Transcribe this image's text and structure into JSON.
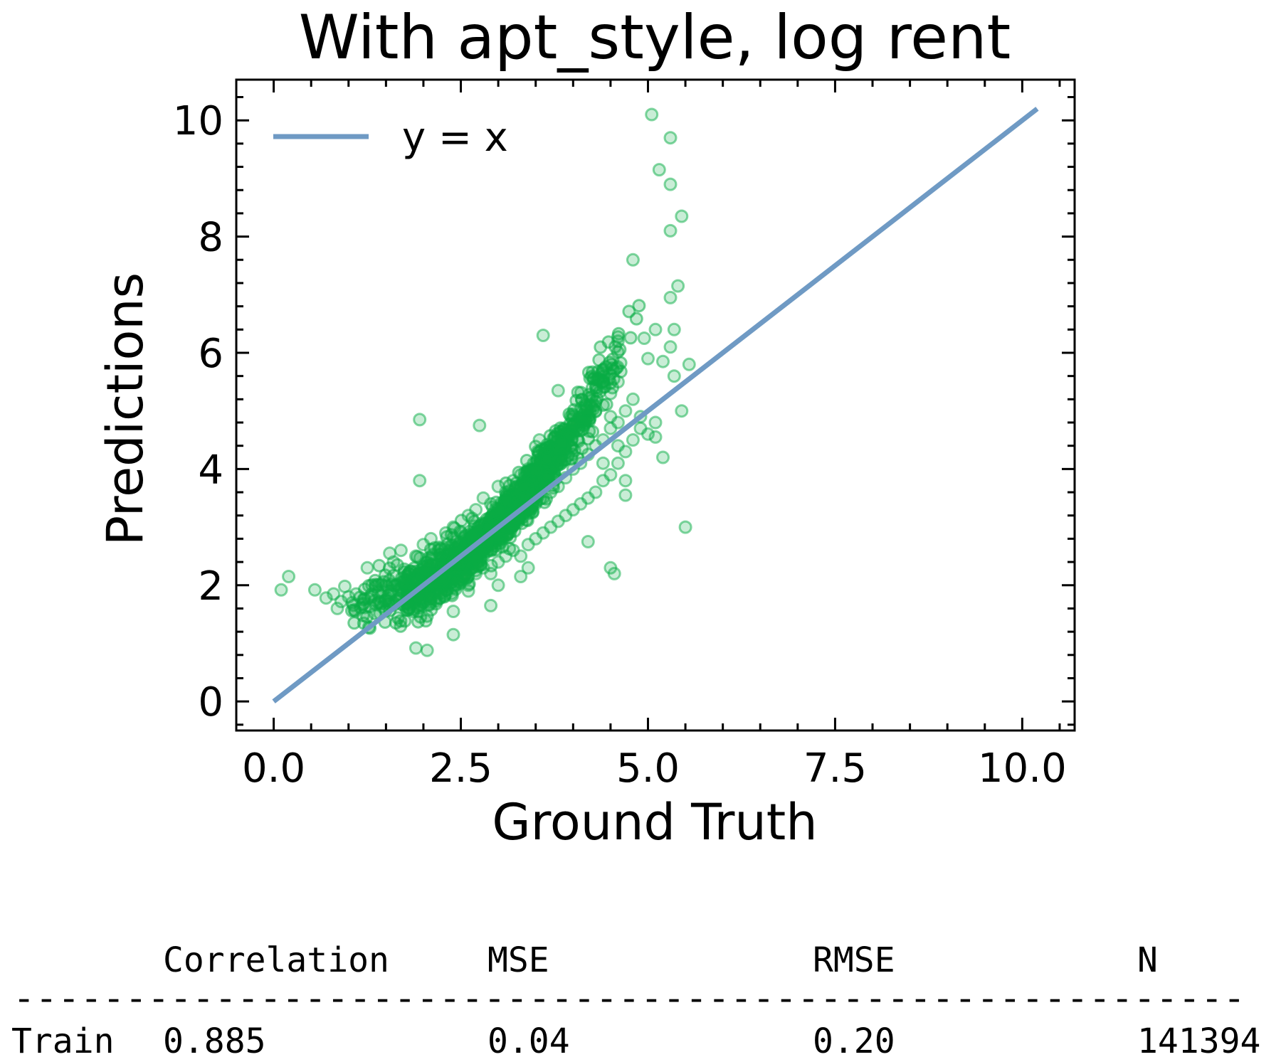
{
  "chart_data": {
    "type": "scatter",
    "title": "With apt_style, log rent",
    "xlabel": "Ground Truth",
    "ylabel": "Predictions",
    "xlim": [
      -0.5,
      10.7
    ],
    "ylim": [
      -0.5,
      10.7
    ],
    "x_ticks": [
      0.0,
      2.5,
      5.0,
      7.5,
      10.0
    ],
    "x_tick_labels": [
      "0.0",
      "2.5",
      "5.0",
      "7.5",
      "10.0"
    ],
    "y_ticks": [
      0,
      2,
      4,
      6,
      8,
      10
    ],
    "y_tick_labels": [
      "0",
      "2",
      "4",
      "6",
      "8",
      "10"
    ],
    "grid": false,
    "legend": {
      "position": "top-left",
      "entries": [
        "y = x"
      ]
    },
    "reference_line": {
      "name": "y = x",
      "x": [
        0,
        10.2
      ],
      "y": [
        0,
        10.2
      ],
      "color": "#6f9ac4"
    },
    "scatter_color": "#0aad45",
    "series": [
      {
        "points": [
          [
            0.1,
            1.92
          ],
          [
            0.2,
            2.15
          ],
          [
            0.55,
            1.92
          ],
          [
            0.7,
            1.78
          ],
          [
            0.8,
            1.85
          ],
          [
            0.85,
            1.6
          ],
          [
            0.9,
            1.72
          ],
          [
            0.95,
            1.98
          ],
          [
            1.0,
            1.8
          ],
          [
            1.05,
            1.7
          ],
          [
            1.1,
            1.85
          ],
          [
            1.2,
            1.75
          ],
          [
            1.3,
            1.8
          ],
          [
            1.4,
            1.7
          ],
          [
            1.5,
            1.75
          ],
          [
            1.6,
            1.7
          ],
          [
            1.7,
            1.75
          ],
          [
            1.8,
            1.85
          ],
          [
            1.9,
            1.9
          ],
          [
            2.0,
            2.0
          ],
          [
            2.1,
            2.05
          ],
          [
            2.2,
            2.15
          ],
          [
            2.3,
            2.2
          ],
          [
            2.4,
            2.3
          ],
          [
            2.5,
            2.4
          ],
          [
            2.6,
            2.5
          ],
          [
            2.7,
            2.6
          ],
          [
            2.8,
            2.7
          ],
          [
            2.9,
            2.8
          ],
          [
            3.0,
            2.9
          ],
          [
            3.1,
            3.0
          ],
          [
            3.2,
            3.1
          ],
          [
            3.3,
            3.2
          ],
          [
            3.4,
            3.3
          ],
          [
            3.5,
            3.4
          ],
          [
            3.6,
            3.5
          ],
          [
            3.7,
            3.6
          ],
          [
            3.8,
            3.7
          ],
          [
            3.9,
            3.85
          ],
          [
            4.0,
            4.0
          ],
          [
            4.1,
            4.1
          ],
          [
            4.2,
            4.25
          ],
          [
            4.3,
            4.4
          ],
          [
            4.4,
            4.5
          ],
          [
            4.5,
            4.7
          ],
          [
            4.6,
            4.8
          ],
          [
            4.7,
            5.0
          ],
          [
            4.8,
            5.2
          ],
          [
            1.5,
            2.0
          ],
          [
            1.6,
            2.4
          ],
          [
            1.7,
            2.6
          ],
          [
            1.8,
            2.2
          ],
          [
            1.9,
            2.5
          ],
          [
            2.0,
            2.7
          ],
          [
            2.1,
            2.8
          ],
          [
            2.2,
            2.6
          ],
          [
            2.3,
            2.9
          ],
          [
            2.4,
            3.0
          ],
          [
            2.5,
            2.9
          ],
          [
            2.6,
            3.2
          ],
          [
            2.7,
            3.3
          ],
          [
            2.8,
            3.5
          ],
          [
            2.9,
            3.4
          ],
          [
            3.0,
            3.7
          ],
          [
            3.1,
            3.6
          ],
          [
            3.2,
            3.8
          ],
          [
            3.3,
            3.9
          ],
          [
            3.4,
            4.0
          ],
          [
            3.5,
            4.1
          ],
          [
            3.6,
            4.2
          ],
          [
            3.7,
            4.0
          ],
          [
            3.8,
            4.3
          ],
          [
            3.9,
            4.5
          ],
          [
            4.0,
            4.6
          ],
          [
            4.1,
            4.8
          ],
          [
            4.2,
            4.9
          ],
          [
            4.3,
            5.0
          ],
          [
            4.4,
            5.1
          ],
          [
            4.5,
            5.3
          ],
          [
            4.6,
            5.5
          ],
          [
            2.0,
            1.7
          ],
          [
            2.1,
            1.8
          ],
          [
            2.2,
            1.9
          ],
          [
            2.3,
            1.85
          ],
          [
            2.4,
            2.0
          ],
          [
            2.5,
            2.1
          ],
          [
            2.6,
            2.0
          ],
          [
            2.7,
            2.2
          ],
          [
            2.8,
            2.3
          ],
          [
            2.9,
            2.2
          ],
          [
            3.0,
            2.4
          ],
          [
            3.1,
            2.5
          ],
          [
            3.2,
            2.6
          ],
          [
            3.3,
            2.5
          ],
          [
            3.4,
            2.7
          ],
          [
            3.5,
            2.8
          ],
          [
            3.6,
            2.9
          ],
          [
            3.7,
            3.0
          ],
          [
            3.8,
            3.1
          ],
          [
            3.9,
            3.2
          ],
          [
            4.0,
            3.3
          ],
          [
            4.1,
            3.4
          ],
          [
            4.2,
            3.5
          ],
          [
            4.3,
            3.6
          ],
          [
            4.4,
            3.8
          ],
          [
            4.5,
            3.9
          ],
          [
            4.6,
            4.1
          ],
          [
            4.7,
            4.3
          ],
          [
            4.8,
            4.5
          ],
          [
            4.9,
            4.7
          ],
          [
            5.0,
            4.6
          ],
          [
            5.1,
            4.8
          ],
          [
            1.95,
            4.85
          ],
          [
            1.95,
            3.8
          ],
          [
            1.9,
            0.92
          ],
          [
            2.05,
            0.88
          ],
          [
            2.4,
            1.55
          ],
          [
            2.4,
            1.15
          ],
          [
            2.6,
            1.9
          ],
          [
            2.9,
            1.65
          ],
          [
            3.0,
            2.0
          ],
          [
            3.3,
            2.15
          ],
          [
            3.4,
            2.3
          ],
          [
            3.6,
            6.3
          ],
          [
            3.8,
            5.35
          ],
          [
            4.2,
            2.75
          ],
          [
            4.5,
            2.3
          ],
          [
            4.55,
            2.2
          ],
          [
            4.6,
            6.2
          ],
          [
            4.7,
            3.55
          ],
          [
            4.8,
            7.6
          ],
          [
            4.95,
            6.25
          ],
          [
            5.0,
            5.9
          ],
          [
            5.1,
            6.4
          ],
          [
            5.05,
            10.1
          ],
          [
            5.3,
            9.7
          ],
          [
            5.15,
            9.15
          ],
          [
            5.3,
            8.9
          ],
          [
            5.45,
            8.35
          ],
          [
            5.3,
            8.1
          ],
          [
            5.4,
            7.15
          ],
          [
            5.3,
            6.95
          ],
          [
            5.35,
            6.4
          ],
          [
            5.3,
            6.1
          ],
          [
            5.2,
            5.85
          ],
          [
            5.35,
            5.6
          ],
          [
            5.55,
            5.8
          ],
          [
            5.45,
            5.0
          ],
          [
            5.5,
            3.0
          ],
          [
            5.2,
            4.2
          ],
          [
            5.1,
            4.55
          ],
          [
            4.9,
            4.9
          ],
          [
            4.7,
            3.8
          ],
          [
            4.6,
            4.4
          ],
          [
            4.5,
            4.9
          ],
          [
            4.4,
            4.1
          ],
          [
            3.55,
            4.5
          ],
          [
            2.75,
            4.75
          ],
          [
            1.55,
            2.55
          ],
          [
            1.25,
            2.3
          ]
        ]
      }
    ]
  },
  "stats_table": {
    "headers": [
      "Correlation",
      "MSE",
      "RMSE",
      "N"
    ],
    "separator": "-------------------------------------------------------",
    "rows": [
      {
        "label": "Train",
        "values": [
          "0.885",
          "0.04",
          "0.20",
          "141394"
        ]
      }
    ]
  }
}
